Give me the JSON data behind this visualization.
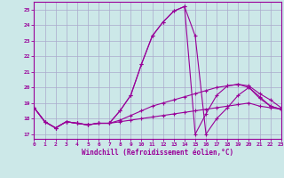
{
  "xlabel": "Windchill (Refroidissement éolien,°C)",
  "background_color": "#cce8e8",
  "grid_color": "#aaaacc",
  "line_color": "#990099",
  "x_ticks": [
    0,
    1,
    2,
    3,
    4,
    5,
    6,
    7,
    8,
    9,
    10,
    11,
    12,
    13,
    14,
    15,
    16,
    17,
    18,
    19,
    20,
    21,
    22,
    23
  ],
  "ylim": [
    16.7,
    25.5
  ],
  "xlim": [
    0,
    23
  ],
  "yticks": [
    17,
    18,
    19,
    20,
    21,
    22,
    23,
    24,
    25
  ],
  "series": [
    {
      "x": [
        0,
        1,
        2,
        3,
        4,
        5,
        6,
        7,
        8,
        9,
        10,
        11,
        12,
        13,
        14,
        15,
        16,
        17,
        18,
        19,
        20,
        21,
        22,
        23
      ],
      "y": [
        18.7,
        17.8,
        17.4,
        17.8,
        17.7,
        17.6,
        17.7,
        17.7,
        17.8,
        17.9,
        18.0,
        18.1,
        18.2,
        18.3,
        18.4,
        18.5,
        18.6,
        18.7,
        18.8,
        18.9,
        19.0,
        18.8,
        18.7,
        18.6
      ]
    },
    {
      "x": [
        0,
        1,
        2,
        3,
        4,
        5,
        6,
        7,
        8,
        9,
        10,
        11,
        12,
        13,
        14,
        15,
        16,
        17,
        18,
        19,
        20,
        21,
        22,
        23
      ],
      "y": [
        18.7,
        17.8,
        17.4,
        17.8,
        17.7,
        17.6,
        17.7,
        17.7,
        17.9,
        18.2,
        18.5,
        18.8,
        19.0,
        19.2,
        19.4,
        19.6,
        19.8,
        20.0,
        20.1,
        20.2,
        20.1,
        19.6,
        19.2,
        18.7
      ]
    },
    {
      "x": [
        0,
        1,
        2,
        3,
        4,
        5,
        6,
        7,
        8,
        9,
        10,
        11,
        12,
        13,
        14,
        15,
        16,
        17,
        18,
        19,
        20,
        21,
        22,
        23
      ],
      "y": [
        18.7,
        17.8,
        17.4,
        17.8,
        17.7,
        17.6,
        17.7,
        17.7,
        18.5,
        19.5,
        21.5,
        23.3,
        24.2,
        24.9,
        25.2,
        17.0,
        18.3,
        19.5,
        20.1,
        20.2,
        20.0,
        19.4,
        18.8,
        18.6
      ]
    },
    {
      "x": [
        0,
        1,
        2,
        3,
        4,
        5,
        6,
        7,
        8,
        9,
        10,
        11,
        12,
        13,
        14,
        15,
        16,
        17,
        18,
        19,
        20,
        21,
        22,
        23
      ],
      "y": [
        18.7,
        17.8,
        17.4,
        17.8,
        17.7,
        17.6,
        17.7,
        17.7,
        18.5,
        19.5,
        21.5,
        23.3,
        24.2,
        24.9,
        25.2,
        23.3,
        17.0,
        18.0,
        18.7,
        19.5,
        20.0,
        19.3,
        18.8,
        18.6
      ]
    }
  ]
}
